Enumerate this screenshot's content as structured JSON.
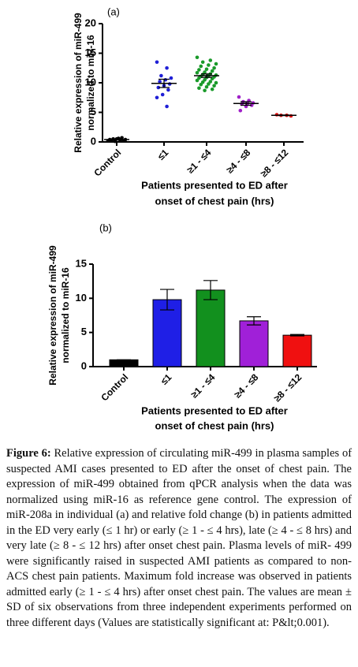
{
  "chart_data": [
    {
      "type": "dot",
      "panel": "(a)",
      "ylabel": [
        "Relative expression of miR-499",
        "normalized to miR-16"
      ],
      "xlabel": [
        "Patients presented to ED after",
        "onset of chest pain (hrs)"
      ],
      "categories": [
        "Control",
        "≤1",
        "≥1 - ≤4",
        "≥4 - ≤8",
        "≥8 - ≤12"
      ],
      "colors": [
        "#000000",
        "#1f1fd6",
        "#1a9a2a",
        "#a020c8",
        "#e01010"
      ],
      "points": [
        [
          0.2,
          0.3,
          0.5,
          0.4,
          0.6,
          0.3,
          0.2,
          0.5,
          0.4,
          0.7,
          0.1
        ],
        [
          13.5,
          12.5,
          11.2,
          10.8,
          10.5,
          10.2,
          9.8,
          9.5,
          9.2,
          8.8,
          8,
          7.5,
          6
        ],
        [
          14.3,
          13.8,
          13.5,
          13.2,
          13,
          12.8,
          12.5,
          12.3,
          12.2,
          12,
          11.8,
          11.7,
          11.5,
          11.4,
          11.3,
          11.2,
          11.1,
          11,
          10.9,
          10.8,
          10.7,
          10.5,
          10.4,
          10.2,
          10.1,
          10,
          9.8,
          9.7,
          9.5,
          9.3,
          9.1,
          8.9,
          8.7
        ],
        [
          7.6,
          7,
          6.8,
          6.6,
          6.5,
          6.4,
          6.2,
          6,
          5.3
        ],
        [
          4.6,
          4.5,
          4.5,
          4.4
        ]
      ],
      "means": [
        0.4,
        9.9,
        11.2,
        6.5,
        4.5
      ],
      "errors": [
        0.1,
        0.7,
        0.3,
        0.3,
        0.05
      ],
      "ylim": [
        0,
        20
      ],
      "yticks": [
        0,
        5,
        10,
        15,
        20
      ]
    },
    {
      "type": "bar",
      "panel": "(b)",
      "ylabel": [
        "Relative expression of miR-499",
        "normalized to miR-16"
      ],
      "xlabel": [
        "Patients presented to ED after",
        "onset of chest pain (hrs)"
      ],
      "categories": [
        "Control",
        "≤1",
        "≥1 - ≤4",
        "≥4 - ≤8",
        "≥8 - ≤12"
      ],
      "colors": [
        "#000000",
        "#1f1fe6",
        "#12901e",
        "#a020d8",
        "#f01010"
      ],
      "values": [
        1,
        9.8,
        11.2,
        6.7,
        4.6
      ],
      "errors": [
        0,
        1.5,
        1.4,
        0.6,
        0.1
      ],
      "ylim": [
        0,
        15
      ],
      "yticks": [
        0,
        5,
        10,
        15
      ]
    }
  ],
  "caption": {
    "label": "Figure 6:",
    "text": "Relative expression of circulating miR-499 in plasma samples of suspected AMI cases presented to ED after the onset of chest pain. The expression of miR-499 obtained from qPCR analysis when the data was normalized using miR-16 as reference gene control. The expression of miR-208a in individual (a) and relative fold change (b) in patients admitted in the ED very early (≤ 1 hr) or early (≥ 1 - ≤ 4 hrs), late (≥ 4 - ≤ 8 hrs) and very late (≥ 8 - ≤ 12 hrs) after onset chest pain. Plasma levels of miR- 499 were significantly raised in suspected AMI patients as compared to non-ACS chest pain patients. Maximum fold increase was observed in patients admitted early (≥ 1 - ≤ 4 hrs) after onset chest pain. The values are mean ± SD of six observations from three independent experiments performed on three different days (Values are statistically significant at: P&lt;0.001)."
  }
}
